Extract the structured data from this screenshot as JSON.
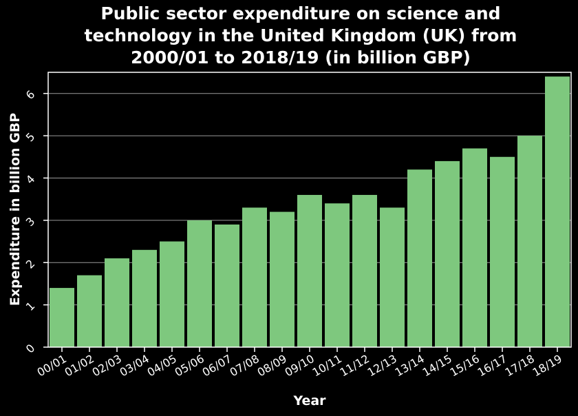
{
  "chart_data": {
    "type": "bar",
    "title_lines": [
      "Public sector expenditure on science and",
      "technology in the United Kingdom (UK) from",
      "2000/01 to 2018/19 (in billion GBP)"
    ],
    "xlabel": "Year",
    "ylabel": "Expenditure in billion GBP",
    "categories": [
      "00/01",
      "01/02",
      "02/03",
      "03/04",
      "04/05",
      "05/06",
      "06/07",
      "07/08",
      "08/09",
      "09/10",
      "10/11",
      "11/12",
      "12/13",
      "13/14",
      "14/15",
      "15/16",
      "16/17",
      "17/18",
      "18/19"
    ],
    "values": [
      1.4,
      1.7,
      2.1,
      2.3,
      2.5,
      3.0,
      2.9,
      3.3,
      3.2,
      3.6,
      3.4,
      3.6,
      3.3,
      4.2,
      4.4,
      4.7,
      4.5,
      5.0,
      6.4
    ],
    "yticks": [
      0,
      1,
      2,
      3,
      4,
      5,
      6
    ],
    "ylim": [
      0,
      6.5
    ],
    "grid": true,
    "colors": {
      "bar": "#7ec87e",
      "background": "#000000",
      "text": "#ffffff",
      "grid": "#9a9a9a"
    }
  }
}
